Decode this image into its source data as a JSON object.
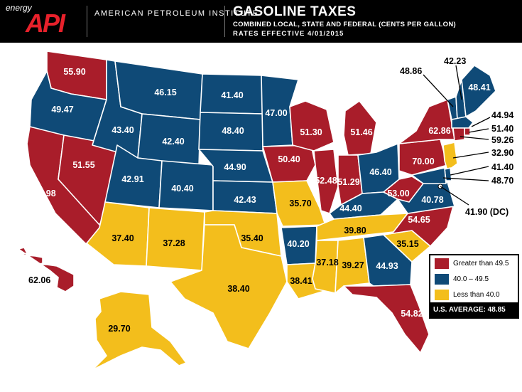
{
  "header": {
    "logo_energy": "energy",
    "logo_api": "API",
    "organization": "AMERICAN PETROLEUM INSTITUTE",
    "title": "GASOLINE TAXES",
    "subtitle": "COMBINED LOCAL, STATE AND FEDERAL (CENTS PER GALLON)",
    "effective": "RATES EFFECTIVE 4/01/2015"
  },
  "colors": {
    "high": "#a91d2a",
    "mid": "#0f4a77",
    "low": "#f3be1c",
    "header_bg": "#000000",
    "logo_red": "#e8212b"
  },
  "legend": {
    "items": [
      {
        "label": "Greater than 49.5",
        "color": "#a91d2a"
      },
      {
        "label": "40.0 – 49.5",
        "color": "#0f4a77"
      },
      {
        "label": "Less than 40.0",
        "color": "#f3be1c"
      }
    ],
    "average": "U.S. AVERAGE: 48.85"
  },
  "states": {
    "WA": {
      "value": "55.90",
      "category": "high"
    },
    "OR": {
      "value": "49.47",
      "category": "mid"
    },
    "CA": {
      "value": "65.98",
      "category": "high"
    },
    "NV": {
      "value": "51.55",
      "category": "high"
    },
    "ID": {
      "value": "43.40",
      "category": "mid"
    },
    "MT": {
      "value": "46.15",
      "category": "mid"
    },
    "WY": {
      "value": "42.40",
      "category": "mid"
    },
    "UT": {
      "value": "42.91",
      "category": "mid"
    },
    "CO": {
      "value": "40.40",
      "category": "mid"
    },
    "AZ": {
      "value": "37.40",
      "category": "low"
    },
    "NM": {
      "value": "37.28",
      "category": "low"
    },
    "ND": {
      "value": "41.40",
      "category": "mid"
    },
    "SD": {
      "value": "48.40",
      "category": "mid"
    },
    "NE": {
      "value": "44.90",
      "category": "mid"
    },
    "KS": {
      "value": "42.43",
      "category": "mid"
    },
    "OK": {
      "value": "35.40",
      "category": "low"
    },
    "TX": {
      "value": "38.40",
      "category": "low"
    },
    "MN": {
      "value": "47.00",
      "category": "mid"
    },
    "IA": {
      "value": "50.40",
      "category": "high"
    },
    "MO": {
      "value": "35.70",
      "category": "low"
    },
    "AR": {
      "value": "40.20",
      "category": "mid"
    },
    "LA": {
      "value": "38.41",
      "category": "low"
    },
    "WI": {
      "value": "51.30",
      "category": "high"
    },
    "IL": {
      "value": "52.48",
      "category": "high"
    },
    "MI": {
      "value": "51.46",
      "category": "high"
    },
    "IN": {
      "value": "51.29",
      "category": "high"
    },
    "OH": {
      "value": "46.40",
      "category": "mid"
    },
    "KY": {
      "value": "44.40",
      "category": "mid"
    },
    "TN": {
      "value": "39.80",
      "category": "low"
    },
    "MS": {
      "value": "37.18",
      "category": "low"
    },
    "AL": {
      "value": "39.27",
      "category": "low"
    },
    "GA": {
      "value": "44.93",
      "category": "mid"
    },
    "FL": {
      "value": "54.82",
      "category": "high"
    },
    "SC": {
      "value": "35.15",
      "category": "low"
    },
    "NC": {
      "value": "54.65",
      "category": "high"
    },
    "VA": {
      "value": "40.78",
      "category": "mid"
    },
    "WV": {
      "value": "53.00",
      "category": "high"
    },
    "PA": {
      "value": "70.00",
      "category": "high"
    },
    "NY": {
      "value": "62.86",
      "category": "high"
    },
    "VT": {
      "value": "48.86",
      "category": "mid"
    },
    "NH": {
      "value": "42.23",
      "category": "mid"
    },
    "ME": {
      "value": "48.41",
      "category": "mid"
    },
    "MA": {
      "value": "44.94",
      "category": "mid"
    },
    "RI": {
      "value": "51.40",
      "category": "high"
    },
    "CT": {
      "value": "59.26",
      "category": "high"
    },
    "NJ": {
      "value": "32.90",
      "category": "low"
    },
    "DE": {
      "value": "41.40",
      "category": "mid"
    },
    "MD": {
      "value": "48.70",
      "category": "mid"
    },
    "DC": {
      "value": "41.90 (DC)",
      "category": "mid"
    },
    "HI": {
      "value": "62.06",
      "category": "high"
    },
    "AK": {
      "value": "29.70",
      "category": "low"
    }
  }
}
